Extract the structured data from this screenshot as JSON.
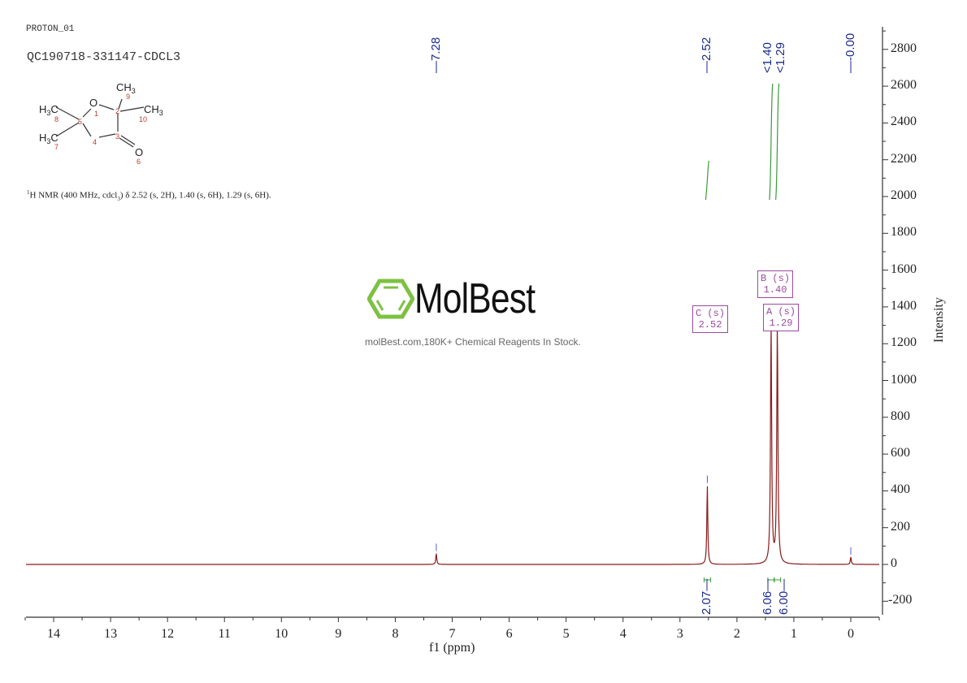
{
  "header": {
    "experiment": "PROTON_01",
    "sample": "QC190718-331147-CDCL3",
    "nmr_description": "H NMR (400 MHz, cdcl3) δ 2.52 (s, 2H), 1.40 (s, 6H), 1.29 (s, 6H).",
    "nmr_prefix_sup": "1",
    "nmr_text_main": "H NMR (400 MHz, cdcl",
    "nmr_text_sub": "3",
    "nmr_text_rest": ") δ 2.52 (s, 2H), 1.40 (s, 6H), 1.29 (s, 6H)."
  },
  "structure": {
    "atoms": [
      {
        "label": "O",
        "num": "1"
      },
      {
        "label": "C",
        "num": "2"
      },
      {
        "label": "C",
        "num": "3"
      },
      {
        "label": "C",
        "num": "4"
      },
      {
        "label": "C",
        "num": "5"
      },
      {
        "label": "O",
        "num": "6"
      },
      {
        "label": "H3C",
        "num": "7"
      },
      {
        "label": "H3C",
        "num": "8"
      },
      {
        "label": "CH3",
        "num": "9"
      },
      {
        "label": "CH3",
        "num": "10"
      }
    ],
    "labels": {
      "ch3_9": "CH",
      "ch3_10": "CH",
      "h3c_8": "H",
      "h3c_7": "H",
      "o1": "O",
      "o6": "O",
      "sub3": "3",
      "c": "C",
      "n1": "1",
      "n2": "2",
      "n3": "3",
      "n4": "4",
      "n5": "5",
      "n6": "6",
      "n7": "7",
      "n8": "8",
      "n9": "9",
      "n10": "10"
    }
  },
  "watermark": {
    "brand": "MolBest",
    "tagline": "molBest.com,180K+ Chemical Reagents In Stock.",
    "logo_color": "#7dc142"
  },
  "colors": {
    "spectrum": "#8b1a1a",
    "integral": "#3a9a3a",
    "peak_label": "#1a2a8c",
    "multiplet_box": "#9b4aa0",
    "axis": "#333333"
  },
  "chart_data": {
    "type": "line",
    "title": "PROTON_01",
    "xlabel": "f1 (ppm)",
    "ylabel": "Intensity",
    "xlim": [
      14.5,
      -0.5
    ],
    "ylim": [
      -250,
      2950
    ],
    "x_ticks": [
      "14",
      "13",
      "12",
      "11",
      "10",
      "9",
      "8",
      "7",
      "6",
      "5",
      "4",
      "3",
      "2",
      "1",
      "0"
    ],
    "y_ticks": [
      "2800",
      "2600",
      "2400",
      "2200",
      "2000",
      "1800",
      "1600",
      "1400",
      "1200",
      "1000",
      "800",
      "600",
      "400",
      "200",
      "0",
      "-200"
    ],
    "peak_labels": [
      "7.28",
      "2.52",
      "1.40",
      "1.29",
      "-0.00"
    ],
    "peaks": [
      {
        "ppm": 7.28,
        "intensity": 60
      },
      {
        "ppm": 2.52,
        "intensity": 430
      },
      {
        "ppm": 1.4,
        "intensity": 1300
      },
      {
        "ppm": 1.29,
        "intensity": 1300
      },
      {
        "ppm": 0.0,
        "intensity": 40
      }
    ],
    "integrals": [
      {
        "ppm": 2.52,
        "value": "2.07"
      },
      {
        "ppm": 1.4,
        "value": "6.06"
      },
      {
        "ppm": 1.29,
        "value": "6.00"
      }
    ],
    "multiplets": [
      {
        "id": "C",
        "type": "(s)",
        "shift": "2.52"
      },
      {
        "id": "B",
        "type": "(s)",
        "shift": "1.40"
      },
      {
        "id": "A",
        "type": "(s)",
        "shift": "1.29"
      }
    ],
    "grid": false,
    "legend": "none"
  }
}
